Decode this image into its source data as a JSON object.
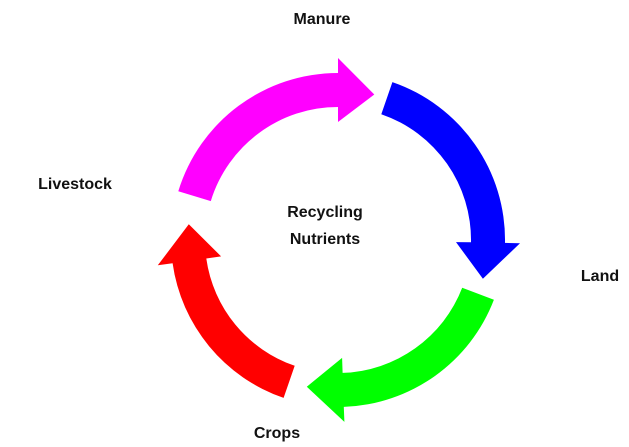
{
  "nodes": [
    {
      "label": "Manure"
    },
    {
      "label": "Land"
    },
    {
      "label": "Crops"
    },
    {
      "label": "Livestock"
    }
  ],
  "center": {
    "lines": [
      "Recycling",
      "Nutrients"
    ]
  }
}
